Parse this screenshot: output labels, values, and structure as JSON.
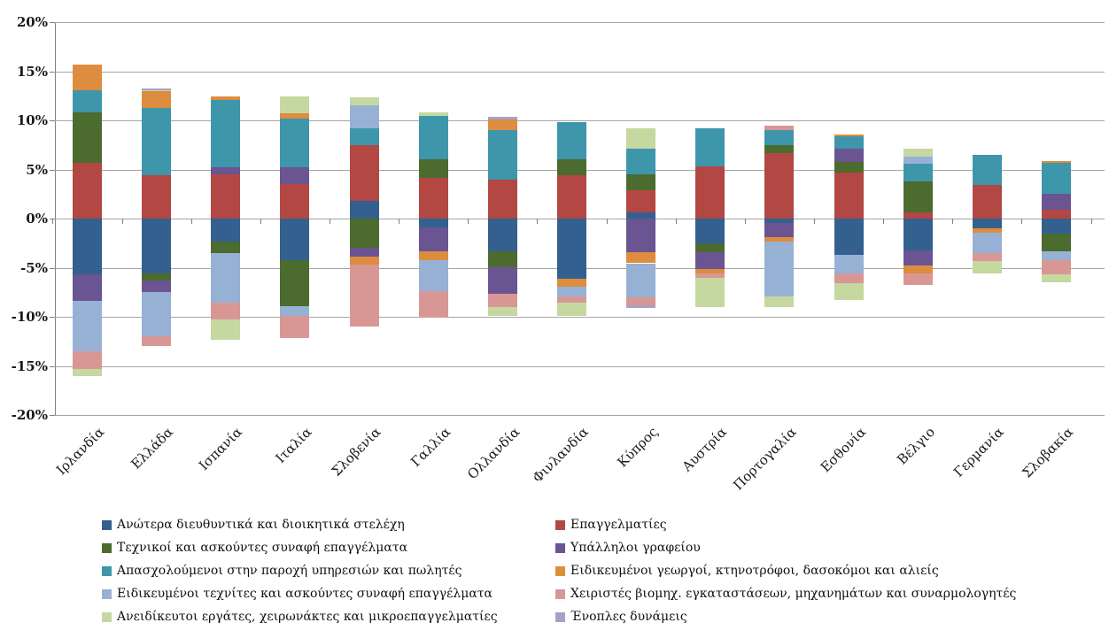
{
  "chart_data": {
    "type": "bar",
    "stacked": true,
    "orientation": "vertical",
    "title": "",
    "xlabel": "",
    "ylabel": "",
    "ylim": [
      -20,
      20
    ],
    "y_tick_step": 5,
    "y_tick_labels": [
      "20%",
      "15%",
      "10%",
      "5%",
      "0%",
      "-5%",
      "-10%",
      "-15%",
      "-20%"
    ],
    "grid": true,
    "grid_color": "#a6a6a6",
    "axis_color": "#808080",
    "text_color": "#1a1a1a",
    "legend_position": "bottom-two-columns",
    "categories": [
      "Ιρλανδία",
      "Ελλάδα",
      "Ισπανία",
      "Ιταλία",
      "Σλοβενία",
      "Γαλλία",
      "Ολλανδία",
      "Φινλανδία",
      "Κύπρος",
      "Αυστρία",
      "Πορτογαλία",
      "Εσθονία",
      "Βέλγιο",
      "Γερμανία",
      "Σλοβακία"
    ],
    "series": [
      {
        "name": "Ανώτερα διευθυντικά και διοικητικά στελέχη",
        "color": "#33608F",
        "values": [
          -5.7,
          -5.6,
          -2.3,
          -4.2,
          1.8,
          -0.9,
          -3.3,
          -6.1,
          0.6,
          -2.5,
          -0.45,
          -3.7,
          -3.2,
          -1.0,
          -1.5
        ]
      },
      {
        "name": "Επαγγελματίες",
        "color": "#B24743",
        "values": [
          5.7,
          4.4,
          4.5,
          3.5,
          5.7,
          4.1,
          4.0,
          4.4,
          2.3,
          5.3,
          6.7,
          4.7,
          0.6,
          3.45,
          0.9
        ]
      },
      {
        "name": "Τεχνικοί και ασκούντες συναφή επαγγέλματα",
        "color": "#4C6B2F",
        "values": [
          5.1,
          -0.7,
          -1.2,
          -4.7,
          -3.0,
          1.95,
          -1.65,
          1.65,
          1.6,
          -0.95,
          0.8,
          1.05,
          3.2,
          0,
          -1.8
        ]
      },
      {
        "name": "Υπάλληλοι γραφείου",
        "color": "#6A5492",
        "values": [
          -2.7,
          -1.2,
          0.7,
          1.7,
          -0.9,
          -2.4,
          -2.7,
          0,
          -3.4,
          -1.7,
          -1.4,
          1.4,
          -1.6,
          0,
          1.65
        ]
      },
      {
        "name": "Απασχολούμενοι στην παροχή υπηρεσιών και πωλητές",
        "color": "#3E96AB",
        "values": [
          2.3,
          6.9,
          6.9,
          5.0,
          1.65,
          4.4,
          5.0,
          3.75,
          2.6,
          3.9,
          1.5,
          1.2,
          1.8,
          3.0,
          3.1
        ]
      },
      {
        "name": "Ειδικευμένοι γεωργοί, κτηνοτρόφοι, δασοκόμοι και αλιείς",
        "color": "#DE8C3E",
        "values": [
          2.6,
          1.7,
          0.3,
          0.5,
          -0.75,
          -0.9,
          1.1,
          -0.85,
          -1.15,
          -0.45,
          -0.5,
          0.25,
          -0.75,
          -0.4,
          0.2
        ]
      },
      {
        "name": "Ειδικευμένοι τεχνίτες και ασκούντες συναφή επαγγέλματα",
        "color": "#97B1D5",
        "values": [
          -5.1,
          -4.5,
          -5.1,
          -1.0,
          2.4,
          -3.2,
          0,
          -0.95,
          -3.45,
          0,
          -5.6,
          -1.9,
          0.75,
          -2.1,
          -0.9
        ]
      },
      {
        "name": "Χειριστές βιομηχ. εγκαταστάσεων, μηχανημάτων και συναρμολογητές",
        "color": "#D89795",
        "values": [
          -1.8,
          -1.0,
          -1.7,
          -2.3,
          -6.3,
          -2.7,
          -1.4,
          -0.7,
          -0.8,
          -0.45,
          0.45,
          -1.0,
          -1.2,
          -0.85,
          -1.5
        ]
      },
      {
        "name": "Ανειδίκευτοι εργάτες, χειρωνάκτες και μικροεπαγγελματίες",
        "color": "#C5D8A0",
        "values": [
          -0.75,
          0.1,
          -2.0,
          1.7,
          0.75,
          0.35,
          -0.85,
          -1.35,
          2.1,
          -3.0,
          -1.05,
          -1.7,
          0.8,
          -1.2,
          -0.75
        ]
      },
      {
        "name": "Ένοπλες δυνάμεις",
        "color": "#A9A0C9",
        "values": [
          0,
          0.15,
          0,
          0,
          0,
          0,
          0.25,
          0,
          -0.3,
          0,
          0,
          0,
          0,
          0,
          0
        ]
      }
    ]
  }
}
